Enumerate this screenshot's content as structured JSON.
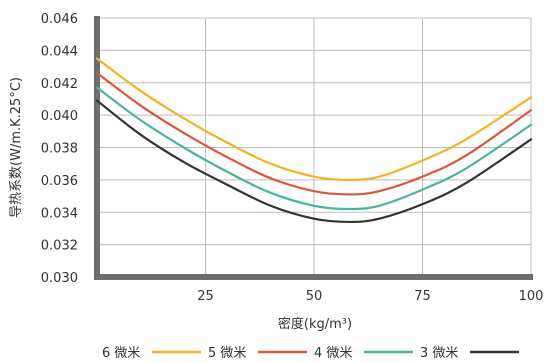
{
  "chart_data": {
    "type": "line",
    "xlabel": "密度(kg/m³)",
    "ylabel": "导热系数(W/m.K.25°C)",
    "xlim": [
      0,
      100
    ],
    "ylim": [
      0.03,
      0.046
    ],
    "x_ticks": [
      "25",
      "50",
      "75",
      "100"
    ],
    "y_ticks": [
      "0.030",
      "0.032",
      "0.034",
      "0.036",
      "0.038",
      "0.040",
      "0.042",
      "0.044",
      "0.046"
    ],
    "grid": true,
    "legend_position": "bottom",
    "x": [
      0,
      10,
      20,
      30,
      40,
      50,
      58,
      65,
      75,
      85,
      100
    ],
    "series": [
      {
        "name": "6 微米",
        "color": "#f5b324",
        "values": [
          0.0435,
          0.0415,
          0.0398,
          0.0383,
          0.037,
          0.0362,
          0.036,
          0.0362,
          0.0372,
          0.0385,
          0.0411
        ]
      },
      {
        "name": "5 微米",
        "color": "#e0553a",
        "values": [
          0.0426,
          0.0406,
          0.0389,
          0.0374,
          0.0361,
          0.0353,
          0.0351,
          0.0353,
          0.0362,
          0.0375,
          0.0403
        ]
      },
      {
        "name": "4 微米",
        "color": "#4cb3a2",
        "values": [
          0.0417,
          0.0397,
          0.038,
          0.0365,
          0.0352,
          0.0344,
          0.0342,
          0.0344,
          0.0354,
          0.0367,
          0.0394
        ]
      },
      {
        "name": "3 微米",
        "color": "#333333",
        "values": [
          0.0409,
          0.0388,
          0.0371,
          0.0357,
          0.0344,
          0.0336,
          0.0334,
          0.0336,
          0.0345,
          0.0358,
          0.0385
        ]
      }
    ]
  }
}
